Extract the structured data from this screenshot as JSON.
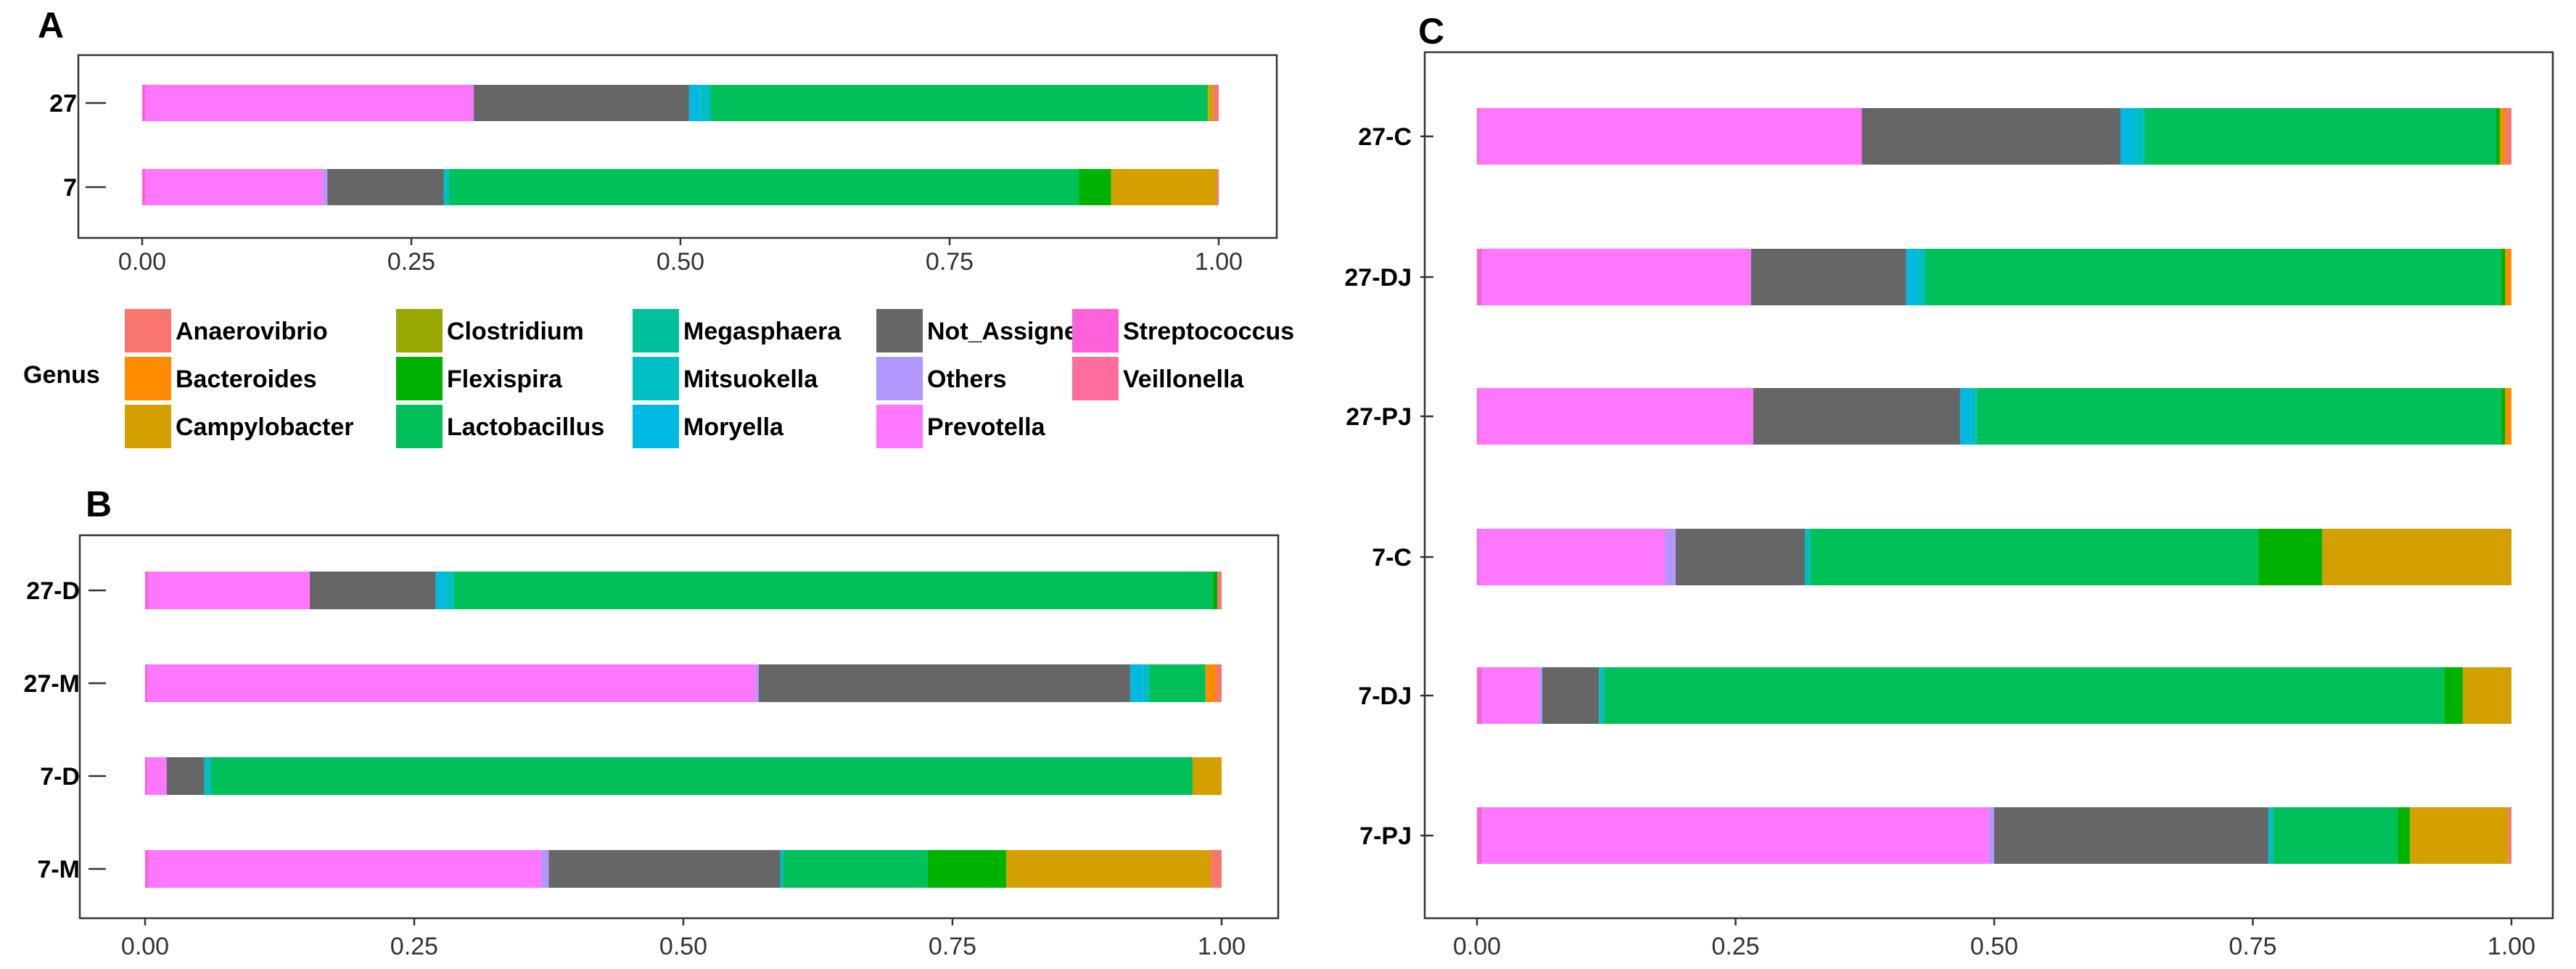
{
  "legend": {
    "title": "Genus",
    "items": [
      {
        "name": "Anaerovibrio",
        "color": "#F8766D"
      },
      {
        "name": "Bacteroides",
        "color": "#FF8C00"
      },
      {
        "name": "Campylobacter",
        "color": "#D4A000"
      },
      {
        "name": "Clostridium",
        "color": "#99A800"
      },
      {
        "name": "Flexispira",
        "color": "#00B200"
      },
      {
        "name": "Lactobacillus",
        "color": "#00C05A"
      },
      {
        "name": "Megasphaera",
        "color": "#00C19A"
      },
      {
        "name": "Mitsuokella",
        "color": "#00BFC4"
      },
      {
        "name": "Moryella",
        "color": "#00B9E3"
      },
      {
        "name": "Not_Assigned",
        "color": "#666666"
      },
      {
        "name": "Others",
        "color": "#B197FF"
      },
      {
        "name": "Prevotella",
        "color": "#FF77FF"
      },
      {
        "name": "Streptococcus",
        "color": "#FF61DA"
      },
      {
        "name": "Veillonella",
        "color": "#FF6C9E"
      }
    ]
  },
  "chart_data": [
    {
      "panel": "A",
      "type": "bar",
      "orientation": "horizontal",
      "stacked": true,
      "categories": [
        "27",
        "7"
      ],
      "xlim": [
        0,
        1
      ],
      "xticks": [
        "0.00",
        "0.25",
        "0.50",
        "0.75",
        "1.00"
      ],
      "series": [
        {
          "name": "Streptococcus",
          "values": [
            0.003,
            0.003
          ]
        },
        {
          "name": "Prevotella",
          "values": [
            0.305,
            0.165
          ]
        },
        {
          "name": "Others",
          "values": [
            0.0,
            0.004
          ]
        },
        {
          "name": "Not_Assigned",
          "values": [
            0.2,
            0.108
          ]
        },
        {
          "name": "Moryella",
          "values": [
            0.01,
            0.0
          ]
        },
        {
          "name": "Mitsuokella",
          "values": [
            0.01,
            0.005
          ]
        },
        {
          "name": "Megasphaera",
          "values": [
            0.0,
            0.0
          ]
        },
        {
          "name": "Lactobacillus",
          "values": [
            0.462,
            0.585
          ]
        },
        {
          "name": "Flexispira",
          "values": [
            0.0,
            0.03
          ]
        },
        {
          "name": "Campylobacter",
          "values": [
            0.005,
            0.098
          ]
        },
        {
          "name": "Anaerovibrio",
          "values": [
            0.005,
            0.002
          ]
        }
      ]
    },
    {
      "panel": "B",
      "type": "bar",
      "orientation": "horizontal",
      "stacked": true,
      "categories": [
        "27-D",
        "27-M",
        "7-D",
        "7-M"
      ],
      "xlim": [
        0,
        1
      ],
      "xticks": [
        "0.00",
        "0.25",
        "0.50",
        "0.75",
        "1.00"
      ],
      "series": [
        {
          "name": "Streptococcus",
          "values": [
            0.003,
            0.002,
            0.002,
            0.003
          ]
        },
        {
          "name": "Prevotella",
          "values": [
            0.15,
            0.565,
            0.018,
            0.365
          ]
        },
        {
          "name": "Others",
          "values": [
            0.0,
            0.003,
            0.0,
            0.007
          ]
        },
        {
          "name": "Not_Assigned",
          "values": [
            0.117,
            0.345,
            0.035,
            0.215
          ]
        },
        {
          "name": "Moryella",
          "values": [
            0.008,
            0.012,
            0.0,
            0.0
          ]
        },
        {
          "name": "Mitsuokella",
          "values": [
            0.009,
            0.006,
            0.006,
            0.003
          ]
        },
        {
          "name": "Megasphaera",
          "values": [
            0.0,
            0.0,
            0.0,
            0.0
          ]
        },
        {
          "name": "Lactobacillus",
          "values": [
            0.705,
            0.052,
            0.912,
            0.134
          ]
        },
        {
          "name": "Flexispira",
          "values": [
            0.004,
            0.0,
            0.0,
            0.073
          ]
        },
        {
          "name": "Campylobacter",
          "values": [
            0.0,
            0.0,
            0.027,
            0.19
          ]
        },
        {
          "name": "Bacteroides",
          "values": [
            0.0,
            0.01,
            0.0,
            0.0
          ]
        },
        {
          "name": "Anaerovibrio",
          "values": [
            0.004,
            0.005,
            0.0,
            0.01
          ]
        }
      ]
    },
    {
      "panel": "C",
      "type": "bar",
      "orientation": "horizontal",
      "stacked": true,
      "categories": [
        "27-C",
        "27-DJ",
        "27-PJ",
        "7-C",
        "7-DJ",
        "7-PJ"
      ],
      "xlim": [
        0,
        1
      ],
      "xticks": [
        "0.00",
        "0.25",
        "0.50",
        "0.75",
        "1.00"
      ],
      "series": [
        {
          "name": "Streptococcus",
          "values": [
            0.002,
            0.005,
            0.002,
            0.002,
            0.005,
            0.005
          ]
        },
        {
          "name": "Prevotella",
          "values": [
            0.37,
            0.26,
            0.265,
            0.18,
            0.055,
            0.49
          ]
        },
        {
          "name": "Others",
          "values": [
            0.0,
            0.0,
            0.0,
            0.01,
            0.003,
            0.005
          ]
        },
        {
          "name": "Not_Assigned",
          "values": [
            0.25,
            0.15,
            0.2,
            0.125,
            0.055,
            0.265
          ]
        },
        {
          "name": "Moryella",
          "values": [
            0.013,
            0.01,
            0.01,
            0.0,
            0.0,
            0.0
          ]
        },
        {
          "name": "Mitsuokella",
          "values": [
            0.01,
            0.008,
            0.006,
            0.005,
            0.005,
            0.005
          ]
        },
        {
          "name": "Megasphaera",
          "values": [
            0.0,
            0.0,
            0.0,
            0.0,
            0.0,
            0.0
          ]
        },
        {
          "name": "Lactobacillus",
          "values": [
            0.34,
            0.557,
            0.507,
            0.433,
            0.812,
            0.12
          ]
        },
        {
          "name": "Flexispira",
          "values": [
            0.004,
            0.004,
            0.004,
            0.062,
            0.018,
            0.012
          ]
        },
        {
          "name": "Campylobacter",
          "values": [
            0.0,
            0.0,
            0.0,
            0.183,
            0.047,
            0.095
          ]
        },
        {
          "name": "Bacteroides",
          "values": [
            0.005,
            0.006,
            0.006,
            0.0,
            0.0,
            0.0
          ]
        },
        {
          "name": "Anaerovibrio",
          "values": [
            0.006,
            0.0,
            0.0,
            0.0,
            0.0,
            0.003
          ]
        }
      ]
    }
  ]
}
